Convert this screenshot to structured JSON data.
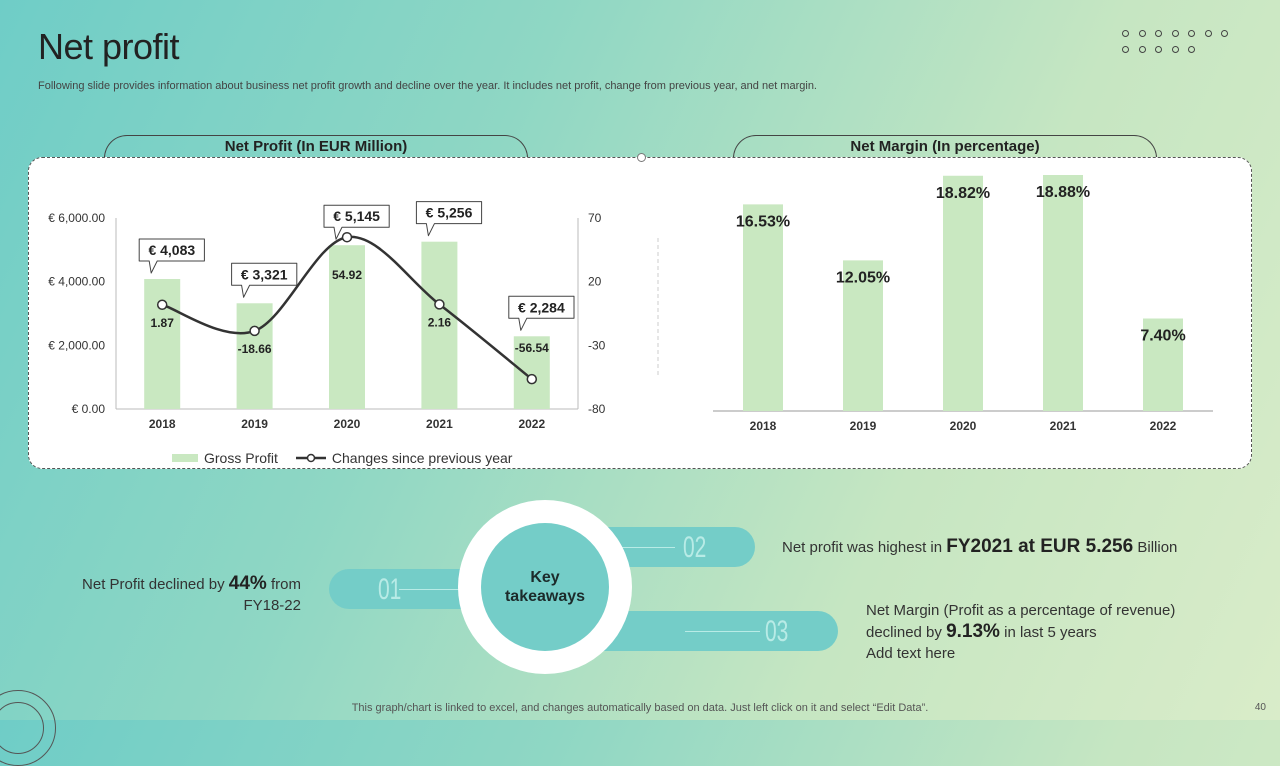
{
  "page": {
    "title": "Net profit",
    "subtitle": "Following slide provides information about business net profit growth and decline over the year. It includes net profit, change from previous year, and net margin.",
    "footer": "This graph/chart is linked to excel, and changes automatically based on data. Just left click on it and select “Edit Data”.",
    "page_number": "40"
  },
  "colors": {
    "bar": "#c9e8c1",
    "line": "#333333",
    "accent": "#74cdc8",
    "number": "#b8ebe6"
  },
  "chart_data": [
    {
      "type": "bar",
      "title": "Net Profit (In EUR Million)",
      "categories": [
        "2018",
        "2019",
        "2020",
        "2021",
        "2022"
      ],
      "series": [
        {
          "name": "Gross Profit",
          "type": "bar",
          "values": [
            4083,
            3321,
            5145,
            5256,
            2284
          ],
          "labels": [
            "€ 4,083",
            "€ 3,321",
            "€ 5,145",
            "€ 5,256",
            "€ 2,284"
          ]
        },
        {
          "name": "Changes since previous year",
          "type": "line",
          "axis": "secondary",
          "values": [
            1.87,
            -18.66,
            54.92,
            2.16,
            -56.54
          ],
          "labels": [
            "1.87",
            "-18.66",
            "54.92",
            "2.16",
            "-56.54"
          ]
        }
      ],
      "ylim": [
        0,
        6000
      ],
      "yticks": [
        "€ 0.00",
        "€ 2,000.00",
        "€ 4,000.00",
        "€ 6,000.00"
      ],
      "y2lim": [
        -80,
        70
      ],
      "y2ticks": [
        "-80",
        "-30",
        "20",
        "70"
      ],
      "legend": [
        "Gross Profit",
        "Changes since previous year"
      ]
    },
    {
      "type": "bar",
      "title": "Net Margin (In percentage)",
      "categories": [
        "2018",
        "2019",
        "2020",
        "2021",
        "2022"
      ],
      "values": [
        16.53,
        12.05,
        18.82,
        18.88,
        7.4
      ],
      "labels": [
        "16.53%",
        "12.05%",
        "18.82%",
        "18.88%",
        "7.40%"
      ],
      "ylim": [
        0,
        20
      ]
    }
  ],
  "takeaways": {
    "hub_line1": "Key",
    "hub_line2": "takeaways",
    "n01": "01",
    "n02": "02",
    "n03": "03",
    "t1_pre": "Net Profit declined by ",
    "t1_bold": "44%",
    "t1_post": " from",
    "t1_line2": "FY18-22",
    "t2_pre": "Net profit was highest in ",
    "t2_bold": "FY2021 at EUR  5.256",
    "t2_post": " Billion",
    "t3_line1": "Net Margin (Profit as a percentage of revenue)",
    "t3_pre": "declined by ",
    "t3_bold": "9.13%",
    "t3_post": " in last 5 years",
    "t3_line3": "Add text here"
  }
}
